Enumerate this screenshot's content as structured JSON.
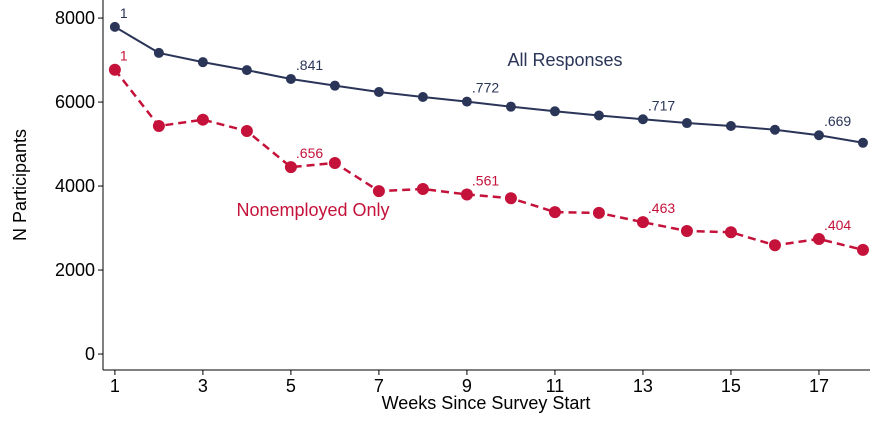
{
  "chart_data": {
    "type": "line",
    "xlabel": "Weeks Since Survey Start",
    "ylabel": "N Participants",
    "x": [
      1,
      2,
      3,
      4,
      5,
      6,
      7,
      8,
      9,
      10,
      11,
      12,
      13,
      14,
      15,
      16,
      17,
      18
    ],
    "series": [
      {
        "name": "All Responses",
        "color": "#2a3558",
        "line_style": "solid",
        "values": [
          7790,
          7170,
          6950,
          6760,
          6550,
          6390,
          6240,
          6120,
          6010,
          5890,
          5780,
          5680,
          5590,
          5500,
          5430,
          5340,
          5210,
          5030
        ],
        "point_labels": [
          "1",
          null,
          null,
          null,
          ".841",
          null,
          null,
          null,
          ".772",
          null,
          null,
          null,
          ".717",
          null,
          null,
          null,
          ".669",
          null
        ]
      },
      {
        "name": "Nonemployed Only",
        "color": "#c4123a",
        "line_style": "dashed",
        "values": [
          6770,
          5430,
          5580,
          5310,
          4450,
          4550,
          3880,
          3930,
          3800,
          3710,
          3380,
          3360,
          3140,
          2930,
          2900,
          2590,
          2740,
          2480
        ],
        "point_labels": [
          "1",
          null,
          null,
          null,
          ".656",
          null,
          null,
          null,
          ".561",
          null,
          null,
          null,
          ".463",
          null,
          null,
          null,
          ".404",
          null
        ]
      }
    ],
    "xlim": [
      0.73,
      18.16
    ],
    "ylim": [
      -380,
      8430
    ],
    "xticks": [
      1,
      3,
      5,
      7,
      9,
      11,
      13,
      15,
      17
    ],
    "yticks": [
      0,
      2000,
      4000,
      6000,
      8000
    ],
    "grid": false
  }
}
